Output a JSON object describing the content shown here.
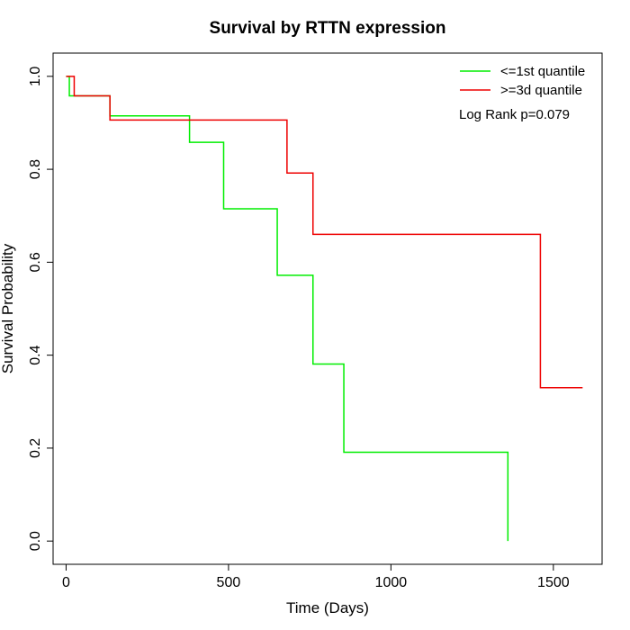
{
  "chart_data": {
    "type": "line",
    "step": true,
    "title": "Survival by RTTN expression",
    "xlabel": "Time (Days)",
    "ylabel": "Survival Probability",
    "xlim": [
      -40,
      1650
    ],
    "ylim": [
      -0.05,
      1.05
    ],
    "xticks": [
      0,
      500,
      1000,
      1500
    ],
    "yticks": [
      0.0,
      0.2,
      0.4,
      0.6,
      0.8,
      1.0
    ],
    "xtick_labels": [
      "0",
      "500",
      "1000",
      "1500"
    ],
    "ytick_labels": [
      "0.0",
      "0.2",
      "0.4",
      "0.6",
      "0.8",
      "1.0"
    ],
    "grid": false,
    "legend_position": "top-right",
    "annotation": "Log Rank p=0.079",
    "series": [
      {
        "name": "<=1st quantile",
        "color": "#00ee00",
        "x": [
          0,
          10,
          135,
          380,
          485,
          650,
          760,
          855,
          1360,
          1360
        ],
        "y": [
          1.0,
          0.958,
          0.915,
          0.858,
          0.715,
          0.572,
          0.381,
          0.191,
          0.191,
          0.0
        ]
      },
      {
        "name": ">=3d quantile",
        "color": "#ee0000",
        "x": [
          0,
          25,
          135,
          680,
          760,
          1460,
          1590
        ],
        "y": [
          1.0,
          0.958,
          0.906,
          0.792,
          0.66,
          0.33,
          0.33
        ]
      }
    ]
  }
}
